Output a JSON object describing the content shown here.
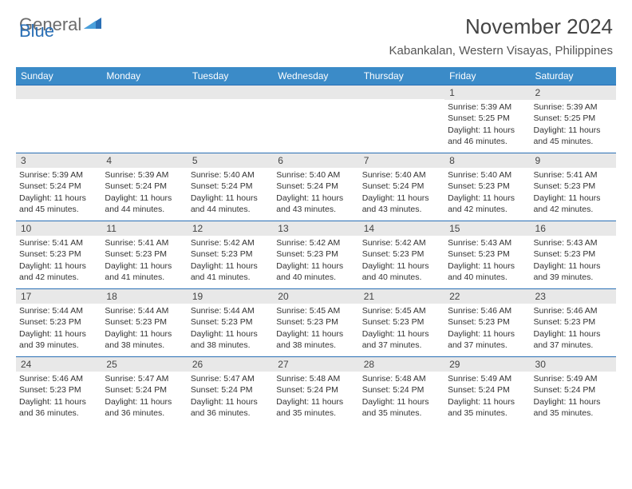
{
  "logo": {
    "text_gray": "General",
    "text_blue": "Blue"
  },
  "title": "November 2024",
  "location": "Kabankalan, Western Visayas, Philippines",
  "day_names": [
    "Sunday",
    "Monday",
    "Tuesday",
    "Wednesday",
    "Thursday",
    "Friday",
    "Saturday"
  ],
  "colors": {
    "header_bar": "#3b8bc8",
    "rule": "#2a6fb5",
    "daynum_bg": "#e8e8e8",
    "text": "#333333"
  },
  "weeks": [
    [
      null,
      null,
      null,
      null,
      null,
      {
        "n": "1",
        "sr": "Sunrise: 5:39 AM",
        "ss": "Sunset: 5:25 PM",
        "dl": "Daylight: 11 hours and 46 minutes."
      },
      {
        "n": "2",
        "sr": "Sunrise: 5:39 AM",
        "ss": "Sunset: 5:25 PM",
        "dl": "Daylight: 11 hours and 45 minutes."
      }
    ],
    [
      {
        "n": "3",
        "sr": "Sunrise: 5:39 AM",
        "ss": "Sunset: 5:24 PM",
        "dl": "Daylight: 11 hours and 45 minutes."
      },
      {
        "n": "4",
        "sr": "Sunrise: 5:39 AM",
        "ss": "Sunset: 5:24 PM",
        "dl": "Daylight: 11 hours and 44 minutes."
      },
      {
        "n": "5",
        "sr": "Sunrise: 5:40 AM",
        "ss": "Sunset: 5:24 PM",
        "dl": "Daylight: 11 hours and 44 minutes."
      },
      {
        "n": "6",
        "sr": "Sunrise: 5:40 AM",
        "ss": "Sunset: 5:24 PM",
        "dl": "Daylight: 11 hours and 43 minutes."
      },
      {
        "n": "7",
        "sr": "Sunrise: 5:40 AM",
        "ss": "Sunset: 5:24 PM",
        "dl": "Daylight: 11 hours and 43 minutes."
      },
      {
        "n": "8",
        "sr": "Sunrise: 5:40 AM",
        "ss": "Sunset: 5:23 PM",
        "dl": "Daylight: 11 hours and 42 minutes."
      },
      {
        "n": "9",
        "sr": "Sunrise: 5:41 AM",
        "ss": "Sunset: 5:23 PM",
        "dl": "Daylight: 11 hours and 42 minutes."
      }
    ],
    [
      {
        "n": "10",
        "sr": "Sunrise: 5:41 AM",
        "ss": "Sunset: 5:23 PM",
        "dl": "Daylight: 11 hours and 42 minutes."
      },
      {
        "n": "11",
        "sr": "Sunrise: 5:41 AM",
        "ss": "Sunset: 5:23 PM",
        "dl": "Daylight: 11 hours and 41 minutes."
      },
      {
        "n": "12",
        "sr": "Sunrise: 5:42 AM",
        "ss": "Sunset: 5:23 PM",
        "dl": "Daylight: 11 hours and 41 minutes."
      },
      {
        "n": "13",
        "sr": "Sunrise: 5:42 AM",
        "ss": "Sunset: 5:23 PM",
        "dl": "Daylight: 11 hours and 40 minutes."
      },
      {
        "n": "14",
        "sr": "Sunrise: 5:42 AM",
        "ss": "Sunset: 5:23 PM",
        "dl": "Daylight: 11 hours and 40 minutes."
      },
      {
        "n": "15",
        "sr": "Sunrise: 5:43 AM",
        "ss": "Sunset: 5:23 PM",
        "dl": "Daylight: 11 hours and 40 minutes."
      },
      {
        "n": "16",
        "sr": "Sunrise: 5:43 AM",
        "ss": "Sunset: 5:23 PM",
        "dl": "Daylight: 11 hours and 39 minutes."
      }
    ],
    [
      {
        "n": "17",
        "sr": "Sunrise: 5:44 AM",
        "ss": "Sunset: 5:23 PM",
        "dl": "Daylight: 11 hours and 39 minutes."
      },
      {
        "n": "18",
        "sr": "Sunrise: 5:44 AM",
        "ss": "Sunset: 5:23 PM",
        "dl": "Daylight: 11 hours and 38 minutes."
      },
      {
        "n": "19",
        "sr": "Sunrise: 5:44 AM",
        "ss": "Sunset: 5:23 PM",
        "dl": "Daylight: 11 hours and 38 minutes."
      },
      {
        "n": "20",
        "sr": "Sunrise: 5:45 AM",
        "ss": "Sunset: 5:23 PM",
        "dl": "Daylight: 11 hours and 38 minutes."
      },
      {
        "n": "21",
        "sr": "Sunrise: 5:45 AM",
        "ss": "Sunset: 5:23 PM",
        "dl": "Daylight: 11 hours and 37 minutes."
      },
      {
        "n": "22",
        "sr": "Sunrise: 5:46 AM",
        "ss": "Sunset: 5:23 PM",
        "dl": "Daylight: 11 hours and 37 minutes."
      },
      {
        "n": "23",
        "sr": "Sunrise: 5:46 AM",
        "ss": "Sunset: 5:23 PM",
        "dl": "Daylight: 11 hours and 37 minutes."
      }
    ],
    [
      {
        "n": "24",
        "sr": "Sunrise: 5:46 AM",
        "ss": "Sunset: 5:23 PM",
        "dl": "Daylight: 11 hours and 36 minutes."
      },
      {
        "n": "25",
        "sr": "Sunrise: 5:47 AM",
        "ss": "Sunset: 5:24 PM",
        "dl": "Daylight: 11 hours and 36 minutes."
      },
      {
        "n": "26",
        "sr": "Sunrise: 5:47 AM",
        "ss": "Sunset: 5:24 PM",
        "dl": "Daylight: 11 hours and 36 minutes."
      },
      {
        "n": "27",
        "sr": "Sunrise: 5:48 AM",
        "ss": "Sunset: 5:24 PM",
        "dl": "Daylight: 11 hours and 35 minutes."
      },
      {
        "n": "28",
        "sr": "Sunrise: 5:48 AM",
        "ss": "Sunset: 5:24 PM",
        "dl": "Daylight: 11 hours and 35 minutes."
      },
      {
        "n": "29",
        "sr": "Sunrise: 5:49 AM",
        "ss": "Sunset: 5:24 PM",
        "dl": "Daylight: 11 hours and 35 minutes."
      },
      {
        "n": "30",
        "sr": "Sunrise: 5:49 AM",
        "ss": "Sunset: 5:24 PM",
        "dl": "Daylight: 11 hours and 35 minutes."
      }
    ]
  ]
}
